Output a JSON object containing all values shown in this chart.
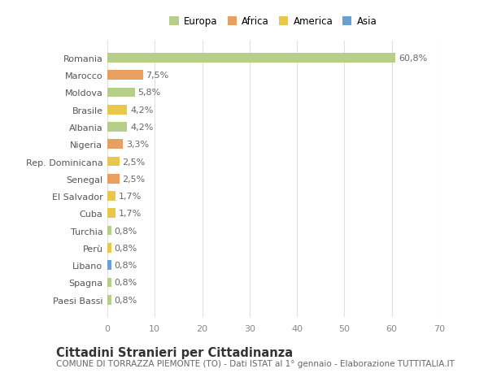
{
  "categories": [
    "Paesi Bassi",
    "Spagna",
    "Libano",
    "Perù",
    "Turchia",
    "Cuba",
    "El Salvador",
    "Senegal",
    "Rep. Dominicana",
    "Nigeria",
    "Albania",
    "Brasile",
    "Moldova",
    "Marocco",
    "Romania"
  ],
  "values": [
    0.8,
    0.8,
    0.8,
    0.8,
    0.8,
    1.7,
    1.7,
    2.5,
    2.5,
    3.3,
    4.2,
    4.2,
    5.8,
    7.5,
    60.8
  ],
  "colors": [
    "#b5cf8a",
    "#b5cf8a",
    "#6b9fd4",
    "#e8c84a",
    "#b5cf8a",
    "#e8c84a",
    "#e8c84a",
    "#e8a060",
    "#e8c84a",
    "#e8a060",
    "#b5cf8a",
    "#e8c84a",
    "#b5cf8a",
    "#e8a060",
    "#b5cf8a"
  ],
  "labels": [
    "0,8%",
    "0,8%",
    "0,8%",
    "0,8%",
    "0,8%",
    "1,7%",
    "1,7%",
    "2,5%",
    "2,5%",
    "3,3%",
    "4,2%",
    "4,2%",
    "5,8%",
    "7,5%",
    "60,8%"
  ],
  "legend": [
    {
      "label": "Europa",
      "color": "#b5cf8a"
    },
    {
      "label": "Africa",
      "color": "#e8a060"
    },
    {
      "label": "America",
      "color": "#e8c84a"
    },
    {
      "label": "Asia",
      "color": "#6b9fd4"
    }
  ],
  "xlim": [
    0,
    70
  ],
  "xticks": [
    0,
    10,
    20,
    30,
    40,
    50,
    60,
    70
  ],
  "title": "Cittadini Stranieri per Cittadinanza",
  "subtitle": "COMUNE DI TORRAZZA PIEMONTE (TO) - Dati ISTAT al 1° gennaio - Elaborazione TUTTITALIA.IT",
  "background_color": "#ffffff",
  "grid_color": "#e0e0e0",
  "bar_height": 0.55,
  "label_fontsize": 8,
  "ytick_fontsize": 8,
  "xtick_fontsize": 8,
  "title_fontsize": 10.5,
  "subtitle_fontsize": 7.5
}
